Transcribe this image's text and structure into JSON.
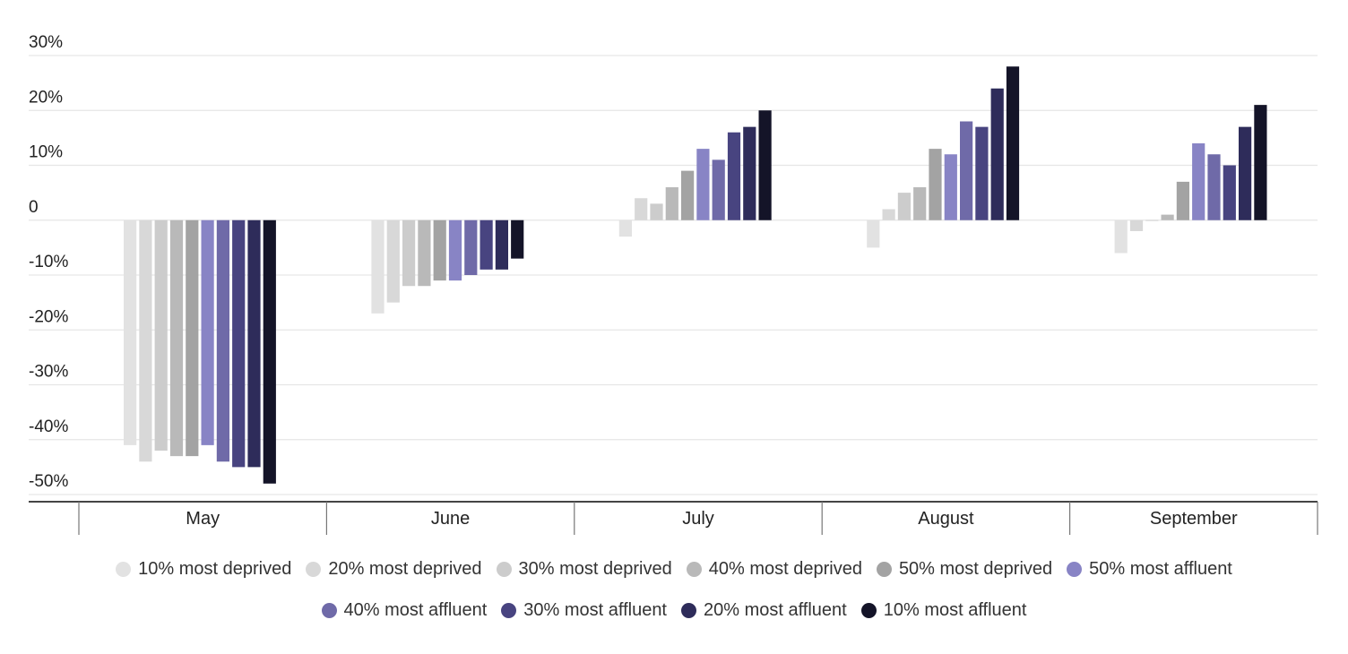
{
  "chart_data": {
    "type": "bar",
    "categories": [
      "May",
      "June",
      "July",
      "August",
      "September"
    ],
    "ylim": [
      -50,
      30
    ],
    "yticks": [
      30,
      20,
      10,
      0,
      -10,
      -20,
      -30,
      -40,
      -50
    ],
    "ytick_labels": [
      "30%",
      "20%",
      "10%",
      "0",
      "-10%",
      "-20%",
      "-30%",
      "-40%",
      "-50%"
    ],
    "grid": true,
    "legend_position": "bottom",
    "series": [
      {
        "name": "10% most deprived",
        "color": "#e2e2e2",
        "values": [
          -41,
          -17,
          -3,
          -5,
          -6
        ]
      },
      {
        "name": "20% most deprived",
        "color": "#d8d8d8",
        "values": [
          -44,
          -15,
          4,
          2,
          -2
        ]
      },
      {
        "name": "30% most deprived",
        "color": "#cccccc",
        "values": [
          -42,
          -12,
          3,
          5,
          0
        ]
      },
      {
        "name": "40% most deprived",
        "color": "#b9b9b9",
        "values": [
          -43,
          -12,
          6,
          6,
          1
        ]
      },
      {
        "name": "50% most deprived",
        "color": "#a3a3a3",
        "values": [
          -43,
          -11,
          9,
          13,
          7
        ]
      },
      {
        "name": "50% most affluent",
        "color": "#8884c5",
        "values": [
          -41,
          -11,
          13,
          12,
          14
        ]
      },
      {
        "name": "40% most affluent",
        "color": "#6f6aa8",
        "values": [
          -44,
          -10,
          11,
          18,
          12
        ]
      },
      {
        "name": "30% most affluent",
        "color": "#484480",
        "values": [
          -45,
          -9,
          16,
          17,
          10
        ]
      },
      {
        "name": "20% most affluent",
        "color": "#2e2c5a",
        "values": [
          -45,
          -9,
          17,
          24,
          17
        ]
      },
      {
        "name": "10% most affluent",
        "color": "#141428",
        "values": [
          -48,
          -7,
          20,
          28,
          21
        ]
      }
    ]
  }
}
